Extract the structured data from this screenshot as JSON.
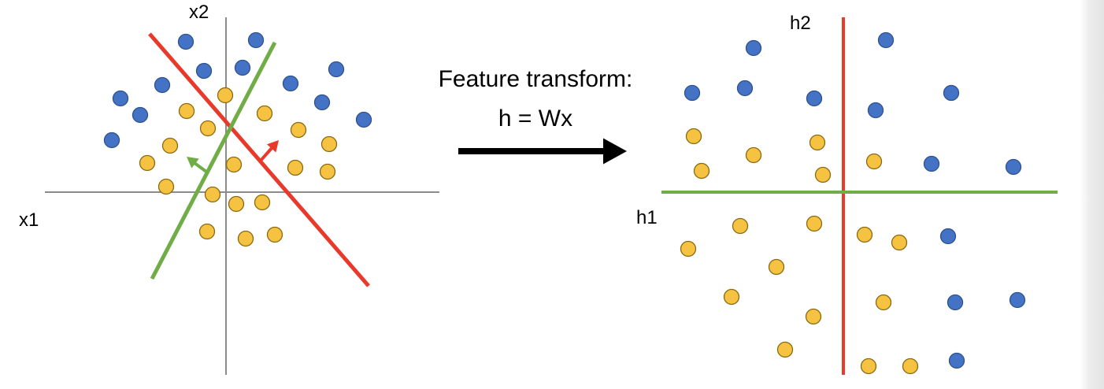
{
  "left_plot": {
    "x_axis_label": "x1",
    "y_axis_label": "x2"
  },
  "right_plot": {
    "x_axis_label": "h1",
    "y_axis_label": "h2"
  },
  "transform": {
    "title": "Feature transform:",
    "equation": "h = Wx"
  },
  "colors": {
    "class_blue": "#4472C4",
    "class_yellow": "#F6C242",
    "boundary_red": "#E8392A",
    "boundary_green": "#70AD47",
    "axis": "#8c8c8c",
    "arrow": "#000000"
  }
}
